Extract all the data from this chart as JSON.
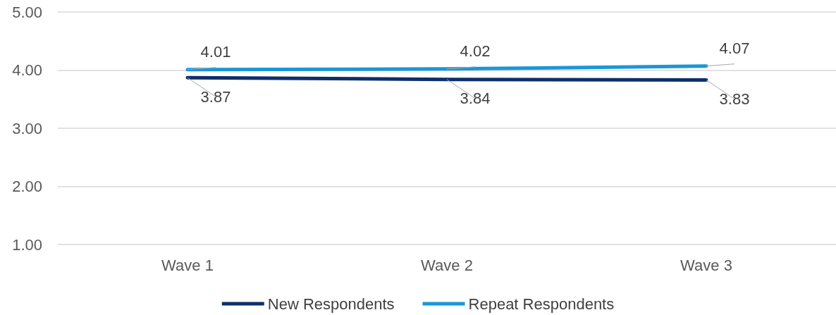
{
  "chart_data": {
    "type": "line",
    "categories": [
      "Wave 1",
      "Wave 2",
      "Wave 3"
    ],
    "series": [
      {
        "name": "New Respondents",
        "color": "#0d2f6b",
        "values": [
          3.87,
          3.84,
          3.83
        ]
      },
      {
        "name": "Repeat Respondents",
        "color": "#1b96d8",
        "values": [
          4.01,
          4.02,
          4.07
        ]
      }
    ],
    "ylim": [
      1,
      5
    ],
    "yticks": [
      {
        "value": 1,
        "label": "1.00"
      },
      {
        "value": 2,
        "label": "2.00"
      },
      {
        "value": 3,
        "label": "3.00"
      },
      {
        "value": 4,
        "label": "4.00"
      },
      {
        "value": 5,
        "label": "5.00"
      }
    ],
    "grid": "y",
    "legend": "bottom",
    "data_labels": true,
    "marker": "none",
    "line_style": "solid"
  }
}
